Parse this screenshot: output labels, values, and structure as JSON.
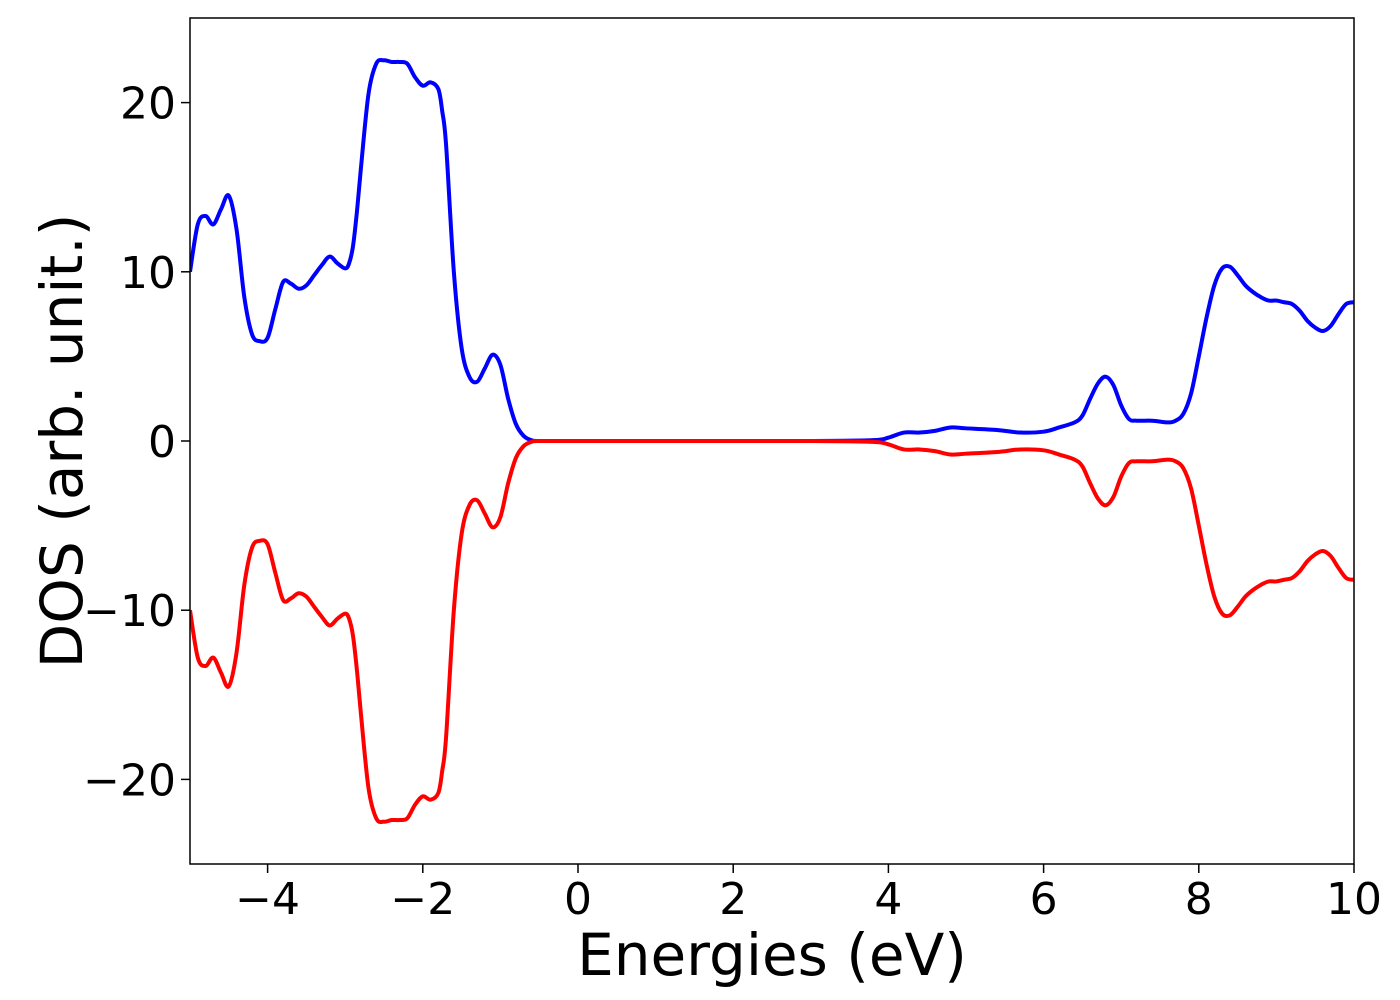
{
  "colors": {
    "background": "#ffffff",
    "axis": "#000000",
    "spin_up": "#0000ff",
    "spin_down": "#ff0000"
  },
  "chart_data": {
    "type": "line",
    "title": "",
    "xlabel": "Energies (eV)",
    "ylabel": "DOS (arb. unit.)",
    "xlim": [
      -5,
      10
    ],
    "ylim": [
      -25,
      25
    ],
    "grid": false,
    "legend": "none",
    "xticks": [
      -4,
      -2,
      0,
      2,
      4,
      6,
      8,
      10
    ],
    "xtick_labels": [
      "−4",
      "−2",
      "0",
      "2",
      "4",
      "6",
      "8",
      "10"
    ],
    "yticks": [
      -20,
      -10,
      0,
      10,
      20
    ],
    "ytick_labels": [
      "−20",
      "−10",
      "0",
      "10",
      "20"
    ],
    "series": [
      {
        "color": "#0000ff",
        "x": [
          -5.0,
          -4.9,
          -4.8,
          -4.7,
          -4.6,
          -4.5,
          -4.4,
          -4.3,
          -4.2,
          -4.1,
          -4.0,
          -3.9,
          -3.8,
          -3.7,
          -3.6,
          -3.5,
          -3.4,
          -3.3,
          -3.2,
          -3.1,
          -3.0,
          -2.95,
          -2.9,
          -2.85,
          -2.8,
          -2.7,
          -2.6,
          -2.5,
          -2.4,
          -2.3,
          -2.2,
          -2.1,
          -2.0,
          -1.9,
          -1.8,
          -1.75,
          -1.7,
          -1.6,
          -1.5,
          -1.4,
          -1.3,
          -1.2,
          -1.1,
          -1.0,
          -0.9,
          -0.8,
          -0.7,
          -0.6,
          -0.5,
          0.0,
          1.0,
          2.0,
          3.0,
          3.8,
          4.0,
          4.2,
          4.4,
          4.6,
          4.8,
          5.0,
          5.4,
          5.7,
          6.0,
          6.2,
          6.4,
          6.5,
          6.6,
          6.7,
          6.8,
          6.9,
          7.0,
          7.1,
          7.2,
          7.4,
          7.6,
          7.7,
          7.8,
          7.9,
          8.0,
          8.1,
          8.2,
          8.3,
          8.4,
          8.5,
          8.6,
          8.7,
          8.8,
          8.9,
          9.0,
          9.1,
          9.2,
          9.3,
          9.4,
          9.5,
          9.6,
          9.7,
          9.8,
          9.9,
          10.0
        ],
        "y": [
          10.0,
          12.8,
          13.3,
          12.8,
          13.7,
          14.5,
          12.5,
          8.5,
          6.3,
          5.9,
          6.1,
          7.8,
          9.4,
          9.3,
          9.0,
          9.2,
          9.8,
          10.4,
          10.9,
          10.5,
          10.2,
          10.5,
          11.5,
          13.5,
          16.0,
          20.5,
          22.3,
          22.5,
          22.4,
          22.4,
          22.3,
          21.5,
          21.0,
          21.2,
          20.8,
          19.5,
          17.5,
          10.0,
          5.5,
          3.8,
          3.5,
          4.3,
          5.1,
          4.5,
          2.5,
          1.0,
          0.3,
          0.05,
          0.0,
          0.0,
          0.0,
          0.0,
          0.0,
          0.05,
          0.2,
          0.5,
          0.5,
          0.6,
          0.8,
          0.75,
          0.65,
          0.5,
          0.55,
          0.8,
          1.1,
          1.5,
          2.5,
          3.4,
          3.8,
          3.3,
          2.1,
          1.3,
          1.2,
          1.2,
          1.1,
          1.2,
          1.6,
          2.8,
          5.0,
          7.3,
          9.2,
          10.2,
          10.3,
          9.8,
          9.2,
          8.8,
          8.5,
          8.3,
          8.3,
          8.2,
          8.1,
          7.7,
          7.1,
          6.7,
          6.5,
          6.8,
          7.5,
          8.1,
          8.2
        ]
      },
      {
        "color": "#ff0000",
        "x": [
          -5.0,
          -4.9,
          -4.8,
          -4.7,
          -4.6,
          -4.5,
          -4.4,
          -4.3,
          -4.2,
          -4.1,
          -4.0,
          -3.9,
          -3.8,
          -3.7,
          -3.6,
          -3.5,
          -3.4,
          -3.3,
          -3.2,
          -3.1,
          -3.0,
          -2.95,
          -2.9,
          -2.85,
          -2.8,
          -2.7,
          -2.6,
          -2.5,
          -2.4,
          -2.3,
          -2.2,
          -2.1,
          -2.0,
          -1.9,
          -1.8,
          -1.75,
          -1.7,
          -1.6,
          -1.5,
          -1.4,
          -1.3,
          -1.2,
          -1.1,
          -1.0,
          -0.9,
          -0.8,
          -0.7,
          -0.6,
          -0.5,
          0.0,
          1.0,
          2.0,
          3.0,
          3.8,
          4.0,
          4.2,
          4.4,
          4.6,
          4.8,
          5.0,
          5.4,
          5.7,
          6.0,
          6.2,
          6.4,
          6.5,
          6.6,
          6.7,
          6.8,
          6.9,
          7.0,
          7.1,
          7.2,
          7.4,
          7.6,
          7.7,
          7.8,
          7.9,
          8.0,
          8.1,
          8.2,
          8.3,
          8.4,
          8.5,
          8.6,
          8.7,
          8.8,
          8.9,
          9.0,
          9.1,
          9.2,
          9.3,
          9.4,
          9.5,
          9.6,
          9.7,
          9.8,
          9.9,
          10.0
        ],
        "y": [
          -10.0,
          -12.8,
          -13.3,
          -12.8,
          -13.7,
          -14.5,
          -12.5,
          -8.5,
          -6.3,
          -5.9,
          -6.1,
          -7.8,
          -9.4,
          -9.3,
          -9.0,
          -9.2,
          -9.8,
          -10.4,
          -10.9,
          -10.5,
          -10.2,
          -10.5,
          -11.5,
          -13.5,
          -16.0,
          -20.5,
          -22.3,
          -22.5,
          -22.4,
          -22.4,
          -22.3,
          -21.5,
          -21.0,
          -21.2,
          -20.8,
          -19.5,
          -17.5,
          -10.0,
          -5.5,
          -3.8,
          -3.5,
          -4.3,
          -5.1,
          -4.5,
          -2.5,
          -1.0,
          -0.3,
          -0.05,
          0.0,
          0.0,
          0.0,
          0.0,
          0.0,
          -0.05,
          -0.2,
          -0.5,
          -0.5,
          -0.6,
          -0.8,
          -0.75,
          -0.65,
          -0.5,
          -0.55,
          -0.8,
          -1.1,
          -1.5,
          -2.5,
          -3.4,
          -3.8,
          -3.3,
          -2.1,
          -1.3,
          -1.2,
          -1.2,
          -1.1,
          -1.2,
          -1.6,
          -2.8,
          -5.0,
          -7.3,
          -9.2,
          -10.2,
          -10.3,
          -9.8,
          -9.2,
          -8.8,
          -8.5,
          -8.3,
          -8.3,
          -8.2,
          -8.1,
          -7.7,
          -7.1,
          -6.7,
          -6.5,
          -6.8,
          -7.5,
          -8.1,
          -8.2
        ]
      }
    ]
  }
}
